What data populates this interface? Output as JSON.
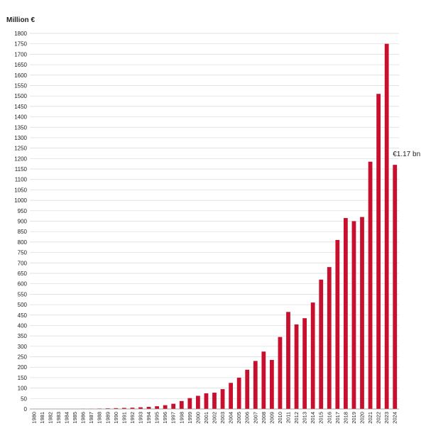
{
  "chart_data": {
    "type": "bar",
    "ylabel": "Million €",
    "xlabel": "",
    "title": "",
    "ylim": [
      0,
      1800
    ],
    "ytick_step": 50,
    "grid": true,
    "bar_color": "#c8102e",
    "categories": [
      "1980",
      "1981",
      "1982",
      "1983",
      "1984",
      "1985",
      "1986",
      "1987",
      "1988",
      "1989",
      "1990",
      "1991",
      "1992",
      "1993",
      "1994",
      "1995",
      "1996",
      "1997",
      "1998",
      "1999",
      "2000",
      "2001",
      "2002",
      "2003",
      "2004",
      "2005",
      "2006",
      "2007",
      "2008",
      "2009",
      "2010",
      "2011",
      "2012",
      "2013",
      "2014",
      "2015",
      "2016",
      "2017",
      "2018",
      "2019",
      "2020",
      "2021",
      "2022",
      "2023",
      "2024"
    ],
    "values": [
      0,
      0,
      0,
      0,
      0,
      0,
      1,
      1,
      2,
      3,
      4,
      5,
      6,
      8,
      10,
      13,
      18,
      25,
      38,
      52,
      63,
      75,
      78,
      95,
      125,
      150,
      188,
      230,
      275,
      235,
      345,
      465,
      405,
      435,
      510,
      620,
      680,
      810,
      915,
      900,
      920,
      1185,
      1510,
      1750,
      1170
    ],
    "annotations": [
      {
        "category": "2024",
        "text": "€1.17 bn"
      }
    ]
  }
}
